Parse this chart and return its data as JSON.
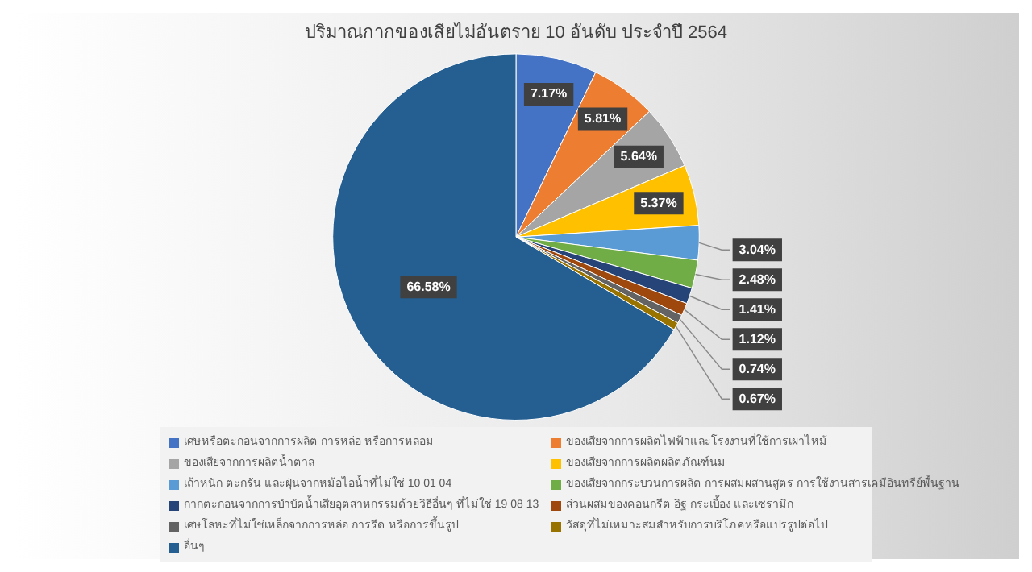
{
  "chart_data": {
    "type": "pie",
    "title": "ปริมาณกากของเสียไม่อันตราย 10 อันดับ ประจำปี 2564",
    "categories": [
      "เศษหรือตะกอนจากการผลิต การหล่อ หรือการหลอม",
      "ของเสียจากการผลิตไฟฟ้าและโรงงานที่ใช้การเผาไหม้",
      "ของเสียจากการผลิตน้ำตาล",
      "ของเสียจากการผลิตผลิตภัณฑ์นม",
      "เถ้าหนัก ตะกรัน และฝุ่นจากหม้อไอน้ำที่ไม่ใช่ 10 01 04",
      "ของเสียจากกระบวนการผลิต การผสมผสานสูตร การใช้งานสารเคมีอินทรีย์พื้นฐาน",
      "กากตะกอนจากการบำบัดน้ำเสียอุตสาหกรรมด้วยวิธีอื่นๆ ที่ไม่ใช่ 19 08 13",
      "ส่วนผสมของคอนกรีต อิฐ กระเบื้อง และเซรามิก",
      "เศษโลหะที่ไม่ใช่เหล็กจากการหล่อ การรีด หรือการขึ้นรูป",
      "วัสดุที่ไม่เหมาะสมสำหรับการบริโภคหรือแปรรูปต่อไป",
      "อื่นๆ"
    ],
    "values": [
      7.17,
      5.81,
      5.64,
      5.37,
      3.04,
      2.48,
      1.41,
      1.12,
      0.74,
      0.67,
      66.58
    ],
    "colors": [
      "#4472c4",
      "#ed7d31",
      "#a5a5a5",
      "#ffc000",
      "#5b9bd5",
      "#70ad47",
      "#264478",
      "#9e480e",
      "#636363",
      "#997300",
      "#255e91"
    ],
    "value_labels": [
      "7.17%",
      "5.81%",
      "5.64%",
      "5.37%",
      "3.04%",
      "2.48%",
      "1.41%",
      "1.12%",
      "0.74%",
      "0.67%",
      "66.58%"
    ],
    "legend": "bottom"
  }
}
